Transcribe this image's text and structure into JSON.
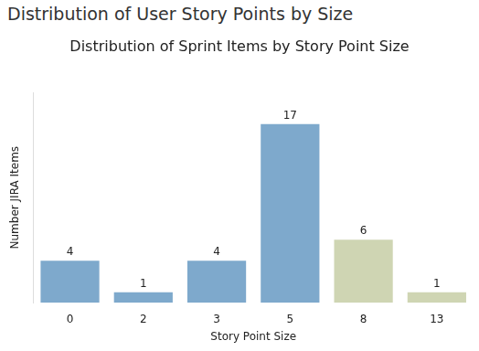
{
  "chart_data": {
    "type": "bar",
    "title": "Distribution of User Story Points by Size",
    "subtitle": "Distribution of Sprint Items by Story Point Size",
    "x_label": "Story Point Size",
    "y_label": "Number JIRA Items",
    "categories": [
      "0",
      "2",
      "3",
      "5",
      "8",
      "13"
    ],
    "values": [
      4,
      1,
      4,
      17,
      6,
      1
    ],
    "colors": [
      "#7ea9cc",
      "#7ea9cc",
      "#7ea9cc",
      "#7ea9cc",
      "#cfd5b3",
      "#cfd5b3"
    ],
    "ylim": [
      0,
      20
    ],
    "grid": false,
    "data_labels": true,
    "tick_labels": "x"
  }
}
